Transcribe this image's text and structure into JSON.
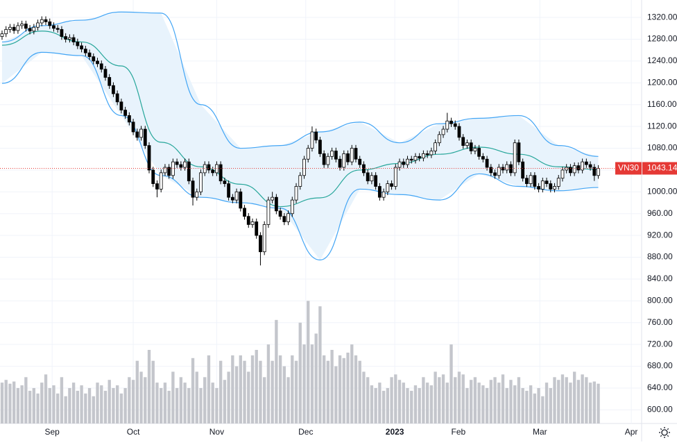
{
  "chart_data": {
    "type": "candlestick",
    "symbol": "VN30",
    "xlim": [
      -0.52,
      160.9
    ],
    "ylim": [
      575,
      1352
    ],
    "xticks": [
      {
        "value": 12.6,
        "label": "Sep"
      },
      {
        "value": 33,
        "label": "Oct"
      },
      {
        "value": 54,
        "label": "Nov"
      },
      {
        "value": 76.4,
        "label": "Dec"
      },
      {
        "value": 98.8,
        "label": "2023"
      },
      {
        "value": 114.8,
        "label": "Feb"
      },
      {
        "value": 135.3,
        "label": "Mar"
      },
      {
        "value": 158.3,
        "label": "Apr"
      }
    ],
    "yticks": [
      {
        "value": 600,
        "label": "600.00"
      },
      {
        "value": 640,
        "label": "640.00"
      },
      {
        "value": 680,
        "label": "680.00"
      },
      {
        "value": 720,
        "label": "720.00"
      },
      {
        "value": 760,
        "label": "760.00"
      },
      {
        "value": 800,
        "label": "800.00"
      },
      {
        "value": 840,
        "label": "840.00"
      },
      {
        "value": 880,
        "label": "880.00"
      },
      {
        "value": 920,
        "label": "920.00"
      },
      {
        "value": 960,
        "label": "960.00"
      },
      {
        "value": 1000,
        "label": "1000.00"
      },
      {
        "value": 1040,
        "label": "1040.00"
      },
      {
        "value": 1080,
        "label": "1080.00"
      },
      {
        "value": 1120,
        "label": "1120.00"
      },
      {
        "value": 1160,
        "label": "1160.00"
      },
      {
        "value": 1200,
        "label": "1200.00"
      },
      {
        "value": 1240,
        "label": "1240.00"
      },
      {
        "value": 1280,
        "label": "1280.00"
      },
      {
        "value": 1320,
        "label": "1320.00"
      }
    ],
    "grid": true,
    "up_color": "#ffffff",
    "down_color": "#000000",
    "last_color": "#e53935",
    "ohlc": [
      [
        1285,
        1296,
        1279,
        1290
      ],
      [
        1290,
        1304,
        1284,
        1298
      ],
      [
        1298,
        1308,
        1292,
        1302
      ],
      [
        1302,
        1308,
        1290,
        1296
      ],
      [
        1296,
        1311,
        1290,
        1305
      ],
      [
        1305,
        1314,
        1299,
        1308
      ],
      [
        1308,
        1314,
        1294,
        1300
      ],
      [
        1300,
        1306,
        1289,
        1295
      ],
      [
        1295,
        1308,
        1289,
        1302
      ],
      [
        1302,
        1316,
        1296,
        1310
      ],
      [
        1310,
        1322,
        1304,
        1316
      ],
      [
        1316,
        1322,
        1306,
        1312
      ],
      [
        1312,
        1318,
        1299,
        1305
      ],
      [
        1305,
        1311,
        1294,
        1300
      ],
      [
        1300,
        1306,
        1292,
        1298
      ],
      [
        1298,
        1304,
        1279,
        1285
      ],
      [
        1285,
        1291,
        1274,
        1280
      ],
      [
        1280,
        1289,
        1274,
        1283
      ],
      [
        1283,
        1289,
        1269,
        1275
      ],
      [
        1275,
        1281,
        1262,
        1268
      ],
      [
        1268,
        1274,
        1256,
        1262
      ],
      [
        1262,
        1268,
        1249,
        1255
      ],
      [
        1255,
        1261,
        1242,
        1248
      ],
      [
        1248,
        1254,
        1234,
        1240
      ],
      [
        1240,
        1246,
        1229,
        1235
      ],
      [
        1235,
        1241,
        1219,
        1225
      ],
      [
        1225,
        1231,
        1204,
        1210
      ],
      [
        1210,
        1216,
        1189,
        1195
      ],
      [
        1195,
        1201,
        1174,
        1180
      ],
      [
        1180,
        1186,
        1159,
        1165
      ],
      [
        1165,
        1171,
        1144,
        1150
      ],
      [
        1150,
        1156,
        1134,
        1140
      ],
      [
        1140,
        1146,
        1122,
        1128
      ],
      [
        1128,
        1134,
        1104,
        1110
      ],
      [
        1110,
        1116,
        1094,
        1100
      ],
      [
        1100,
        1121,
        1094,
        1115
      ],
      [
        1115,
        1121,
        1079,
        1085
      ],
      [
        1085,
        1091,
        1034,
        1040
      ],
      [
        1040,
        1046,
        1009,
        1015
      ],
      [
        1015,
        1021,
        990,
        1005
      ],
      [
        1005,
        1041,
        999,
        1035
      ],
      [
        1035,
        1051,
        1029,
        1045
      ],
      [
        1045,
        1051,
        1024,
        1030
      ],
      [
        1030,
        1061,
        1024,
        1055
      ],
      [
        1055,
        1061,
        1044,
        1050
      ],
      [
        1050,
        1056,
        1039,
        1045
      ],
      [
        1045,
        1061,
        1039,
        1055
      ],
      [
        1055,
        1061,
        1014,
        1020
      ],
      [
        1020,
        1026,
        975,
        990
      ],
      [
        990,
        1006,
        984,
        1000
      ],
      [
        1000,
        1041,
        994,
        1035
      ],
      [
        1035,
        1056,
        1029,
        1050
      ],
      [
        1050,
        1056,
        1034,
        1040
      ],
      [
        1040,
        1046,
        1029,
        1035
      ],
      [
        1035,
        1056,
        1029,
        1050
      ],
      [
        1050,
        1056,
        1014,
        1020
      ],
      [
        1020,
        1026,
        1009,
        1015
      ],
      [
        1015,
        1021,
        984,
        990
      ],
      [
        990,
        996,
        979,
        985
      ],
      [
        985,
        1006,
        979,
        1000
      ],
      [
        1000,
        1006,
        964,
        970
      ],
      [
        970,
        976,
        949,
        955
      ],
      [
        955,
        961,
        934,
        940
      ],
      [
        940,
        951,
        934,
        945
      ],
      [
        945,
        951,
        914,
        920
      ],
      [
        920,
        926,
        865,
        890
      ],
      [
        890,
        946,
        884,
        940
      ],
      [
        940,
        991,
        934,
        985
      ],
      [
        985,
        1000,
        979,
        990
      ],
      [
        990,
        996,
        959,
        965
      ],
      [
        965,
        971,
        949,
        955
      ],
      [
        955,
        961,
        939,
        945
      ],
      [
        945,
        966,
        939,
        960
      ],
      [
        960,
        991,
        954,
        985
      ],
      [
        985,
        1016,
        979,
        1010
      ],
      [
        1010,
        1036,
        1004,
        1030
      ],
      [
        1030,
        1066,
        1024,
        1060
      ],
      [
        1060,
        1086,
        1054,
        1080
      ],
      [
        1080,
        1120,
        1074,
        1110
      ],
      [
        1110,
        1116,
        1089,
        1095
      ],
      [
        1095,
        1101,
        1064,
        1070
      ],
      [
        1070,
        1076,
        1044,
        1050
      ],
      [
        1050,
        1071,
        1044,
        1065
      ],
      [
        1065,
        1081,
        1059,
        1075
      ],
      [
        1075,
        1081,
        1054,
        1060
      ],
      [
        1060,
        1066,
        1039,
        1045
      ],
      [
        1045,
        1076,
        1039,
        1070
      ],
      [
        1070,
        1076,
        1049,
        1055
      ],
      [
        1055,
        1086,
        1049,
        1080
      ],
      [
        1080,
        1086,
        1054,
        1060
      ],
      [
        1060,
        1066,
        1044,
        1050
      ],
      [
        1050,
        1056,
        1029,
        1035
      ],
      [
        1035,
        1041,
        1014,
        1020
      ],
      [
        1020,
        1036,
        1014,
        1030
      ],
      [
        1030,
        1036,
        1004,
        1010
      ],
      [
        1010,
        1016,
        984,
        990
      ],
      [
        990,
        1006,
        984,
        1000
      ],
      [
        1000,
        1021,
        994,
        1015
      ],
      [
        1015,
        1021,
        1004,
        1010
      ],
      [
        1010,
        1051,
        1004,
        1045
      ],
      [
        1045,
        1061,
        1039,
        1055
      ],
      [
        1055,
        1061,
        1044,
        1050
      ],
      [
        1050,
        1066,
        1044,
        1060
      ],
      [
        1060,
        1066,
        1052,
        1058
      ],
      [
        1058,
        1071,
        1052,
        1065
      ],
      [
        1065,
        1071,
        1056,
        1062
      ],
      [
        1062,
        1076,
        1056,
        1070
      ],
      [
        1070,
        1076,
        1062,
        1068
      ],
      [
        1068,
        1081,
        1062,
        1075
      ],
      [
        1075,
        1096,
        1069,
        1090
      ],
      [
        1090,
        1111,
        1084,
        1105
      ],
      [
        1105,
        1121,
        1099,
        1115
      ],
      [
        1115,
        1145,
        1109,
        1130
      ],
      [
        1130,
        1136,
        1119,
        1125
      ],
      [
        1125,
        1131,
        1114,
        1120
      ],
      [
        1120,
        1126,
        1094,
        1100
      ],
      [
        1100,
        1106,
        1079,
        1085
      ],
      [
        1085,
        1096,
        1079,
        1090
      ],
      [
        1090,
        1096,
        1069,
        1075
      ],
      [
        1075,
        1086,
        1069,
        1080
      ],
      [
        1080,
        1086,
        1059,
        1065
      ],
      [
        1065,
        1071,
        1054,
        1060
      ],
      [
        1060,
        1066,
        1039,
        1045
      ],
      [
        1045,
        1051,
        1029,
        1035
      ],
      [
        1035,
        1041,
        1024,
        1030
      ],
      [
        1030,
        1051,
        1024,
        1045
      ],
      [
        1045,
        1051,
        1034,
        1040
      ],
      [
        1040,
        1056,
        1034,
        1050
      ],
      [
        1050,
        1056,
        1029,
        1035
      ],
      [
        1035,
        1096,
        1029,
        1090
      ],
      [
        1090,
        1096,
        1049,
        1055
      ],
      [
        1055,
        1061,
        1019,
        1025
      ],
      [
        1025,
        1031,
        1009,
        1015
      ],
      [
        1015,
        1036,
        1009,
        1030
      ],
      [
        1030,
        1036,
        1004,
        1010
      ],
      [
        1010,
        1016,
        999,
        1005
      ],
      [
        1005,
        1026,
        999,
        1020
      ],
      [
        1020,
        1026,
        1009,
        1015
      ],
      [
        1015,
        1021,
        999,
        1005
      ],
      [
        1005,
        1016,
        999,
        1010
      ],
      [
        1010,
        1031,
        1004,
        1025
      ],
      [
        1025,
        1046,
        1019,
        1040
      ],
      [
        1040,
        1051,
        1034,
        1045
      ],
      [
        1045,
        1051,
        1029,
        1035
      ],
      [
        1035,
        1054,
        1029,
        1048
      ],
      [
        1048,
        1054,
        1034,
        1040
      ],
      [
        1040,
        1061,
        1034,
        1055
      ],
      [
        1055,
        1061,
        1044,
        1050
      ],
      [
        1050,
        1056,
        1039,
        1045
      ],
      [
        1045,
        1051,
        1020,
        1030
      ],
      [
        1030,
        1049,
        1024,
        1043.14
      ]
    ],
    "volume": {
      "color": "#c4c6cc",
      "values": [
        650,
        655,
        648,
        652,
        640,
        645,
        660,
        635,
        640,
        630,
        650,
        665,
        640,
        645,
        630,
        660,
        625,
        640,
        650,
        635,
        645,
        630,
        640,
        625,
        650,
        645,
        635,
        655,
        640,
        645,
        630,
        640,
        660,
        655,
        690,
        670,
        660,
        710,
        690,
        650,
        640,
        650,
        635,
        670,
        640,
        660,
        650,
        640,
        695,
        670,
        640,
        660,
        700,
        650,
        640,
        690,
        655,
        670,
        700,
        680,
        700,
        690,
        670,
        700,
        710,
        690,
        660,
        720,
        690,
        765,
        700,
        680,
        660,
        700,
        690,
        760,
        720,
        800,
        720,
        740,
        790,
        700,
        690,
        710,
        680,
        700,
        695,
        705,
        720,
        700,
        690,
        670,
        660,
        645,
        640,
        650,
        635,
        640,
        660,
        665,
        655,
        650,
        640,
        635,
        645,
        640,
        660,
        650,
        645,
        670,
        660,
        665,
        650,
        720,
        660,
        670,
        665,
        640,
        655,
        660,
        650,
        645,
        640,
        655,
        660,
        650,
        665,
        640,
        655,
        645,
        660,
        640,
        635,
        645,
        630,
        640,
        625,
        650,
        640,
        660,
        655,
        665,
        660,
        650,
        670,
        655,
        665,
        660,
        650,
        652,
        648
      ]
    },
    "bands": {
      "fill": "#e8f3fc",
      "band_color": "#42a5f5",
      "middle_color": "#26a69a",
      "x": [
        0,
        10,
        20,
        30,
        40,
        50,
        60,
        70,
        80,
        90,
        100,
        110,
        120,
        130,
        140,
        150
      ],
      "upper": [
        1275,
        1305,
        1315,
        1330,
        1328,
        1160,
        1080,
        1085,
        1110,
        1128,
        1090,
        1125,
        1135,
        1140,
        1085,
        1065
      ],
      "middle": [
        1269,
        1295,
        1275,
        1231,
        1091,
        1046,
        1014,
        973,
        989,
        1040,
        1052,
        1069,
        1082,
        1069,
        1046,
        1041
      ],
      "lower": [
        1199,
        1256,
        1250,
        1140,
        1030,
        990,
        980,
        970,
        875,
        1005,
        995,
        985,
        1033,
        1010,
        1002,
        1008
      ]
    }
  }
}
